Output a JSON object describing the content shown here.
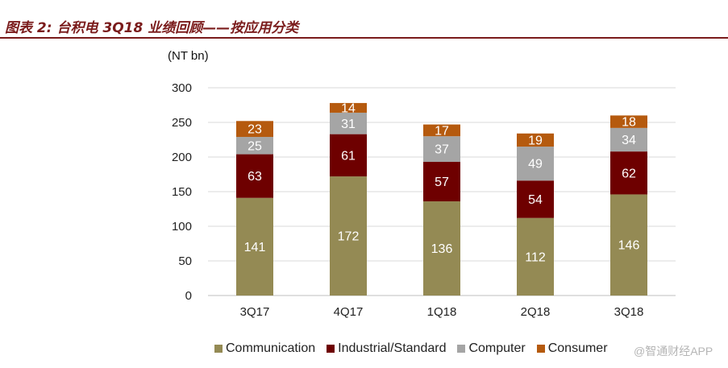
{
  "header": {
    "title": "图表 2: 台积电 3Q18 业绩回顾——按应用分类"
  },
  "watermark": "@智通财经APP",
  "chart_data": {
    "type": "bar",
    "stacked": true,
    "unit_label": "(NT bn)",
    "categories": [
      "3Q17",
      "4Q17",
      "1Q18",
      "2Q18",
      "3Q18"
    ],
    "series": [
      {
        "name": "Communication",
        "color": "#948a54",
        "label_color": "#ffffff",
        "values": [
          141,
          172,
          136,
          112,
          146
        ]
      },
      {
        "name": "Industrial/Standard",
        "color": "#6e0000",
        "label_color": "#ffffff",
        "values": [
          63,
          61,
          57,
          54,
          62
        ]
      },
      {
        "name": "Computer",
        "color": "#a5a5a5",
        "label_color": "#ffffff",
        "values": [
          25,
          31,
          37,
          49,
          34
        ]
      },
      {
        "name": "Consumer",
        "color": "#b55a0e",
        "label_color": "#ffffff",
        "values": [
          23,
          14,
          17,
          19,
          18
        ]
      }
    ],
    "yticks": [
      0,
      50,
      100,
      150,
      200,
      250,
      300
    ],
    "ylim": [
      0,
      300
    ],
    "grid": true,
    "legend_position": "bottom"
  }
}
